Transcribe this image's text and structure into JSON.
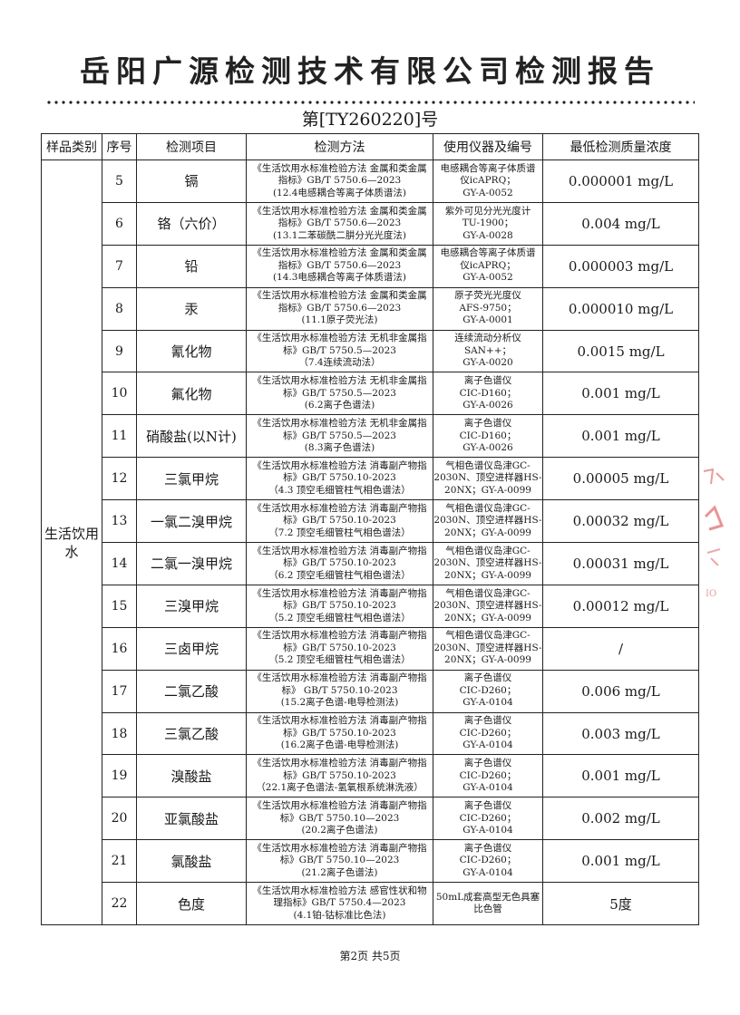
{
  "header": {
    "title": "岳阳广源检测技术有限公司检测报告",
    "report_no": "第[TY260220]号"
  },
  "table": {
    "columns": [
      "样品类别",
      "序号",
      "检测项目",
      "检测方法",
      "使用仪器及编号",
      "最低检测质量浓度"
    ],
    "category": "生活饮用水",
    "rows": [
      {
        "no": "5",
        "item": "镉",
        "method": [
          "《生活饮用水标准检验方法 金属和类金属",
          "指标》GB/T 5750.6—2023",
          "(12.4电感耦合等离子体质谱法)"
        ],
        "instrument": [
          "电感耦合等离子体质谱",
          "仪icAPRQ；",
          "GY-A-0052"
        ],
        "limit": "0.000001 mg/L"
      },
      {
        "no": "6",
        "item": "铬（六价）",
        "method": [
          "《生活饮用水标准检验方法 金属和类金属",
          "指标》GB/T 5750.6—2023",
          "(13.1二苯碳酰二肼分光光度法)"
        ],
        "instrument": [
          "紫外可见分光光度计",
          "TU-1900；",
          "GY-A-0028"
        ],
        "limit": "0.004 mg/L"
      },
      {
        "no": "7",
        "item": "铅",
        "method": [
          "《生活饮用水标准检验方法 金属和类金属",
          "指标》GB/T 5750.6—2023",
          "(14.3电感耦合等离子体质谱法)"
        ],
        "instrument": [
          "电感耦合等离子体质谱",
          "仪icAPRQ；",
          "GY-A-0052"
        ],
        "limit": "0.000003 mg/L"
      },
      {
        "no": "8",
        "item": "汞",
        "method": [
          "《生活饮用水标准检验方法 金属和类金属",
          "指标》GB/T 5750.6—2023",
          "(11.1原子荧光法)"
        ],
        "instrument": [
          "原子荧光光度仪",
          "AFS-9750；",
          "GY-A-0001"
        ],
        "limit": "0.000010 mg/L"
      },
      {
        "no": "9",
        "item": "氰化物",
        "method": [
          "《生活饮用水标准检验方法 无机非金属指",
          "标》GB/T 5750.5—2023",
          "（7.4连续流动法）"
        ],
        "instrument": [
          "连续流动分析仪",
          "SAN++；",
          "GY-A-0020"
        ],
        "limit": "0.0015 mg/L"
      },
      {
        "no": "10",
        "item": "氟化物",
        "method": [
          "《生活饮用水标准检验方法 无机非金属指",
          "标》GB/T 5750.5—2023",
          "(6.2离子色谱法)"
        ],
        "instrument": [
          "离子色谱仪",
          "CIC-D160；",
          "GY-A-0026"
        ],
        "limit": "0.001 mg/L"
      },
      {
        "no": "11",
        "item": "硝酸盐(以N计)",
        "method": [
          "《生活饮用水标准检验方法 无机非金属指",
          "标》GB/T 5750.5—2023",
          "(8.3离子色谱法)"
        ],
        "instrument": [
          "离子色谱仪",
          "CIC-D160；",
          "GY-A-0026"
        ],
        "limit": "0.001 mg/L"
      },
      {
        "no": "12",
        "item": "三氯甲烷",
        "method": [
          "《生活饮用水标准检验方法 消毒副产物指",
          "标》GB/T 5750.10-2023",
          "（4.3 顶空毛细管柱气相色谱法）"
        ],
        "instrument": [
          "气相色谱仪岛津GC-",
          "2030N、顶空进样器HS-",
          "20NX；GY-A-0099"
        ],
        "limit": "0.00005 mg/L"
      },
      {
        "no": "13",
        "item": "一氯二溴甲烷",
        "method": [
          "《生活饮用水标准检验方法 消毒副产物指",
          "标》GB/T 5750.10-2023",
          "（7.2 顶空毛细管柱气相色谱法）"
        ],
        "instrument": [
          "气相色谱仪岛津GC-",
          "2030N、顶空进样器HS-",
          "20NX；GY-A-0099"
        ],
        "limit": "0.00032 mg/L"
      },
      {
        "no": "14",
        "item": "二氯一溴甲烷",
        "method": [
          "《生活饮用水标准检验方法 消毒副产物指",
          "标》GB/T 5750.10-2023",
          "（6.2 顶空毛细管柱气相色谱法）"
        ],
        "instrument": [
          "气相色谱仪岛津GC-",
          "2030N、顶空进样器HS-",
          "20NX；GY-A-0099"
        ],
        "limit": "0.00031 mg/L"
      },
      {
        "no": "15",
        "item": "三溴甲烷",
        "method": [
          "《生活饮用水标准检验方法 消毒副产物指",
          "标》GB/T 5750.10-2023",
          "（5.2 顶空毛细管柱气相色谱法）"
        ],
        "instrument": [
          "气相色谱仪岛津GC-",
          "2030N、顶空进样器HS-",
          "20NX；GY-A-0099"
        ],
        "limit": "0.00012 mg/L"
      },
      {
        "no": "16",
        "item": "三卤甲烷",
        "method": [
          "《生活饮用水标准检验方法 消毒副产物指",
          "标》GB/T 5750.10-2023",
          "（5.2 顶空毛细管柱气相色谱法）"
        ],
        "instrument": [
          "气相色谱仪岛津GC-",
          "2030N、顶空进样器HS-",
          "20NX；GY-A-0099"
        ],
        "limit": "/"
      },
      {
        "no": "17",
        "item": "二氯乙酸",
        "method": [
          "《生活饮用水标准检验方法 消毒副产物指",
          "标》 GB/T 5750.10-2023",
          "(15.2离子色谱-电导检测法)"
        ],
        "instrument": [
          "离子色谱仪",
          "CIC-D260；",
          "GY-A-0104"
        ],
        "limit": "0.006 mg/L"
      },
      {
        "no": "18",
        "item": "三氯乙酸",
        "method": [
          "《生活饮用水标准检验方法 消毒副产物指",
          "标》GB/T 5750.10-2023",
          "(16.2离子色谱-电导检测法)"
        ],
        "instrument": [
          "离子色谱仪",
          "CIC-D260；",
          "GY-A-0104"
        ],
        "limit": "0.003 mg/L"
      },
      {
        "no": "19",
        "item": "溴酸盐",
        "method": [
          "《生活饮用水标准检验方法 消毒副产物指",
          "标》GB/T 5750.10-2023",
          "（22.1离子色谱法-氢氧根系统淋洗液）"
        ],
        "instrument": [
          "离子色谱仪",
          "CIC-D260；",
          "GY-A-0104"
        ],
        "limit": "0.001 mg/L"
      },
      {
        "no": "20",
        "item": "亚氯酸盐",
        "method": [
          "《生活饮用水标准检验方法 消毒副产物指",
          "标》GB/T 5750.10—2023",
          "(20.2离子色谱法)"
        ],
        "instrument": [
          "离子色谱仪",
          "CIC-D260；",
          "GY-A-0104"
        ],
        "limit": "0.002 mg/L"
      },
      {
        "no": "21",
        "item": "氯酸盐",
        "method": [
          "《生活饮用水标准检验方法 消毒副产物指",
          "标》GB/T 5750.10—2023",
          "(21.2离子色谱法)"
        ],
        "instrument": [
          "离子色谱仪",
          "CIC-D260；",
          "GY-A-0104"
        ],
        "limit": "0.001 mg/L"
      },
      {
        "no": "22",
        "item": "色度",
        "method": [
          "《生活饮用水标准检验方法 感官性状和物",
          "理指标》GB/T 5750.4—2023",
          "(4.1铂-钴标准比色法)"
        ],
        "instrument": [
          "50mL成套高型无色具塞",
          "比色管"
        ],
        "limit": "5度"
      }
    ]
  },
  "footer": {
    "page": "第2页  共5页"
  },
  "colors": {
    "stamp": "#d9534f"
  }
}
